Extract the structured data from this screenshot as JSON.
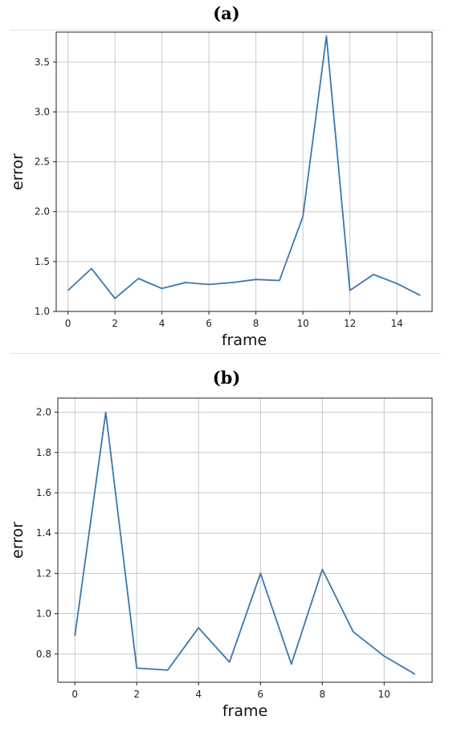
{
  "panels": {
    "a": {
      "label": "(a)"
    },
    "b": {
      "label": "(b)"
    }
  },
  "chart_data": [
    {
      "type": "line",
      "title": "",
      "xlabel": "frame",
      "ylabel": "error",
      "xlim": [
        -0.5,
        15.5
      ],
      "ylim": [
        1.0,
        3.8
      ],
      "xticks": [
        0,
        2,
        4,
        6,
        8,
        10,
        12,
        14
      ],
      "yticks": [
        1.0,
        1.5,
        2.0,
        2.5,
        3.0,
        3.5
      ],
      "grid": true,
      "color": "#3a77ad",
      "x": [
        0,
        1,
        2,
        3,
        4,
        5,
        6,
        7,
        8,
        9,
        10,
        11,
        12,
        13,
        14,
        15
      ],
      "y": [
        1.21,
        1.43,
        1.13,
        1.33,
        1.23,
        1.29,
        1.27,
        1.29,
        1.32,
        1.31,
        1.95,
        3.76,
        1.21,
        1.37,
        1.28,
        1.16
      ]
    },
    {
      "type": "line",
      "title": "",
      "xlabel": "frame",
      "ylabel": "error",
      "xlim": [
        -0.55,
        11.55
      ],
      "ylim": [
        0.66,
        2.07
      ],
      "xticks": [
        0,
        2,
        4,
        6,
        8,
        10
      ],
      "yticks": [
        0.8,
        1.0,
        1.2,
        1.4,
        1.6,
        1.8,
        2.0
      ],
      "grid": true,
      "color": "#3a77ad",
      "x": [
        0,
        1,
        2,
        3,
        4,
        5,
        6,
        7,
        8,
        9,
        10,
        11
      ],
      "y": [
        0.89,
        2.0,
        0.73,
        0.72,
        0.93,
        0.76,
        1.2,
        0.75,
        1.22,
        0.91,
        0.79,
        0.7
      ]
    }
  ]
}
